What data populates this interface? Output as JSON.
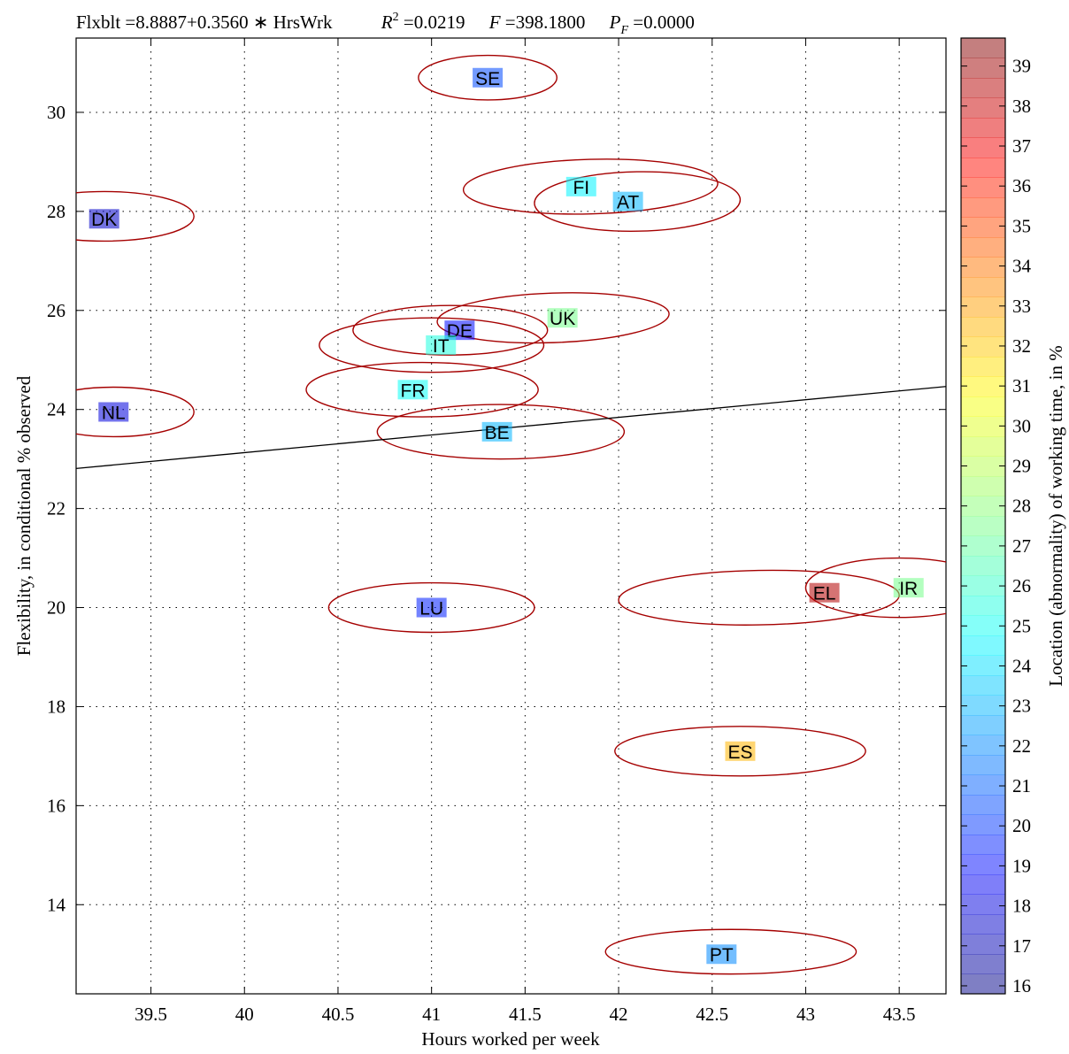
{
  "chart_data": {
    "type": "scatter",
    "title_parts": {
      "equation": "Flxblt =8.8887+0.3560 ∗ HrsWrk",
      "r2_label": "R",
      "r2_sup": "2",
      "r2_value": " =0.0219",
      "f_label": "F",
      "f_value": " =398.1800",
      "p_label": "P",
      "p_sub": "F",
      "p_value": " =0.0000"
    },
    "xlabel": "Hours worked per week",
    "ylabel": "Flexibility, in conditional % observed",
    "colorbar_label": "Location (abnormality) of working time, in %",
    "xlim": [
      39.1,
      43.75
    ],
    "ylim": [
      12.2,
      31.5
    ],
    "xticks": [
      39.5,
      40,
      40.5,
      41,
      41.5,
      42,
      42.5,
      43,
      43.5
    ],
    "xtick_labels": [
      "39.5",
      "40",
      "40.5",
      "41",
      "41.5",
      "42",
      "42.5",
      "43",
      "43.5"
    ],
    "yticks": [
      14,
      16,
      18,
      20,
      22,
      24,
      26,
      28,
      30
    ],
    "ytick_labels": [
      "14",
      "16",
      "18",
      "20",
      "22",
      "24",
      "26",
      "28",
      "30"
    ],
    "grid": true,
    "grid_style": "dotted",
    "colorbar": {
      "min": 15.8,
      "max": 39.7,
      "ticks": [
        16,
        17,
        18,
        19,
        20,
        21,
        22,
        23,
        24,
        25,
        26,
        27,
        28,
        29,
        30,
        31,
        32,
        33,
        34,
        35,
        36,
        37,
        38,
        39
      ],
      "tick_labels": [
        "16",
        "17",
        "18",
        "19",
        "20",
        "21",
        "22",
        "23",
        "24",
        "25",
        "26",
        "27",
        "28",
        "29",
        "30",
        "31",
        "32",
        "33",
        "34",
        "35",
        "36",
        "37",
        "38",
        "39"
      ],
      "colormap": "jet, semi-transparent"
    },
    "regression_line": {
      "intercept": 8.8887,
      "slope": 0.356,
      "color": "#000000"
    },
    "ellipse_color": "#a50000",
    "points": [
      {
        "label": "SE",
        "x": 41.3,
        "y": 30.7,
        "loc": 20.5,
        "ex": 41.3,
        "ey": 30.7,
        "rx": 0.37,
        "ry": 0.45,
        "rot": 0
      },
      {
        "label": "FI",
        "x": 41.8,
        "y": 28.5,
        "loc": 24.5,
        "ex": 41.85,
        "ey": 28.5,
        "rx": 0.68,
        "ry": 0.55,
        "rot": -1.5
      },
      {
        "label": "AT",
        "x": 42.05,
        "y": 28.2,
        "loc": 23.0,
        "ex": 42.1,
        "ey": 28.2,
        "rx": 0.55,
        "ry": 0.6,
        "rot": -1
      },
      {
        "label": "DK",
        "x": 39.25,
        "y": 27.85,
        "loc": 17.5,
        "ex": 39.25,
        "ey": 27.9,
        "rx": 0.48,
        "ry": 0.5,
        "rot": 0
      },
      {
        "label": "UK",
        "x": 41.7,
        "y": 25.85,
        "loc": 27.5,
        "ex": 41.65,
        "ey": 25.85,
        "rx": 0.62,
        "ry": 0.5,
        "rot": -2
      },
      {
        "label": "DE",
        "x": 41.15,
        "y": 25.6,
        "loc": 19.0,
        "ex": 41.1,
        "ey": 25.6,
        "rx": 0.52,
        "ry": 0.5,
        "rot": 0
      },
      {
        "label": "IT",
        "x": 41.05,
        "y": 25.3,
        "loc": 25.5,
        "ex": 41.0,
        "ey": 25.3,
        "rx": 0.6,
        "ry": 0.55,
        "rot": 0
      },
      {
        "label": "FR",
        "x": 40.9,
        "y": 24.4,
        "loc": 25.0,
        "ex": 40.95,
        "ey": 24.4,
        "rx": 0.62,
        "ry": 0.55,
        "rot": 0
      },
      {
        "label": "NL",
        "x": 39.3,
        "y": 23.95,
        "loc": 18.0,
        "ex": 39.3,
        "ey": 23.95,
        "rx": 0.43,
        "ry": 0.5,
        "rot": 0
      },
      {
        "label": "BE",
        "x": 41.35,
        "y": 23.55,
        "loc": 23.0,
        "ex": 41.37,
        "ey": 23.55,
        "rx": 0.66,
        "ry": 0.55,
        "rot": 0
      },
      {
        "label": "LU",
        "x": 41.0,
        "y": 20.0,
        "loc": 19.5,
        "ex": 41.0,
        "ey": 20.0,
        "rx": 0.55,
        "ry": 0.5,
        "rot": 0
      },
      {
        "label": "EL",
        "x": 43.1,
        "y": 20.3,
        "loc": 38.5,
        "ex": 42.75,
        "ey": 20.2,
        "rx": 0.75,
        "ry": 0.55,
        "rot": -1
      },
      {
        "label": "IR",
        "x": 43.55,
        "y": 20.4,
        "loc": 27.5,
        "ex": 43.5,
        "ey": 20.4,
        "rx": 0.5,
        "ry": 0.6,
        "rot": 0
      },
      {
        "label": "ES",
        "x": 42.65,
        "y": 17.1,
        "loc": 32.5,
        "ex": 42.65,
        "ey": 17.1,
        "rx": 0.67,
        "ry": 0.5,
        "rot": 0
      },
      {
        "label": "PT",
        "x": 42.55,
        "y": 13.0,
        "loc": 22.0,
        "ex": 42.6,
        "ey": 13.05,
        "rx": 0.67,
        "ry": 0.45,
        "rot": 0
      }
    ]
  }
}
